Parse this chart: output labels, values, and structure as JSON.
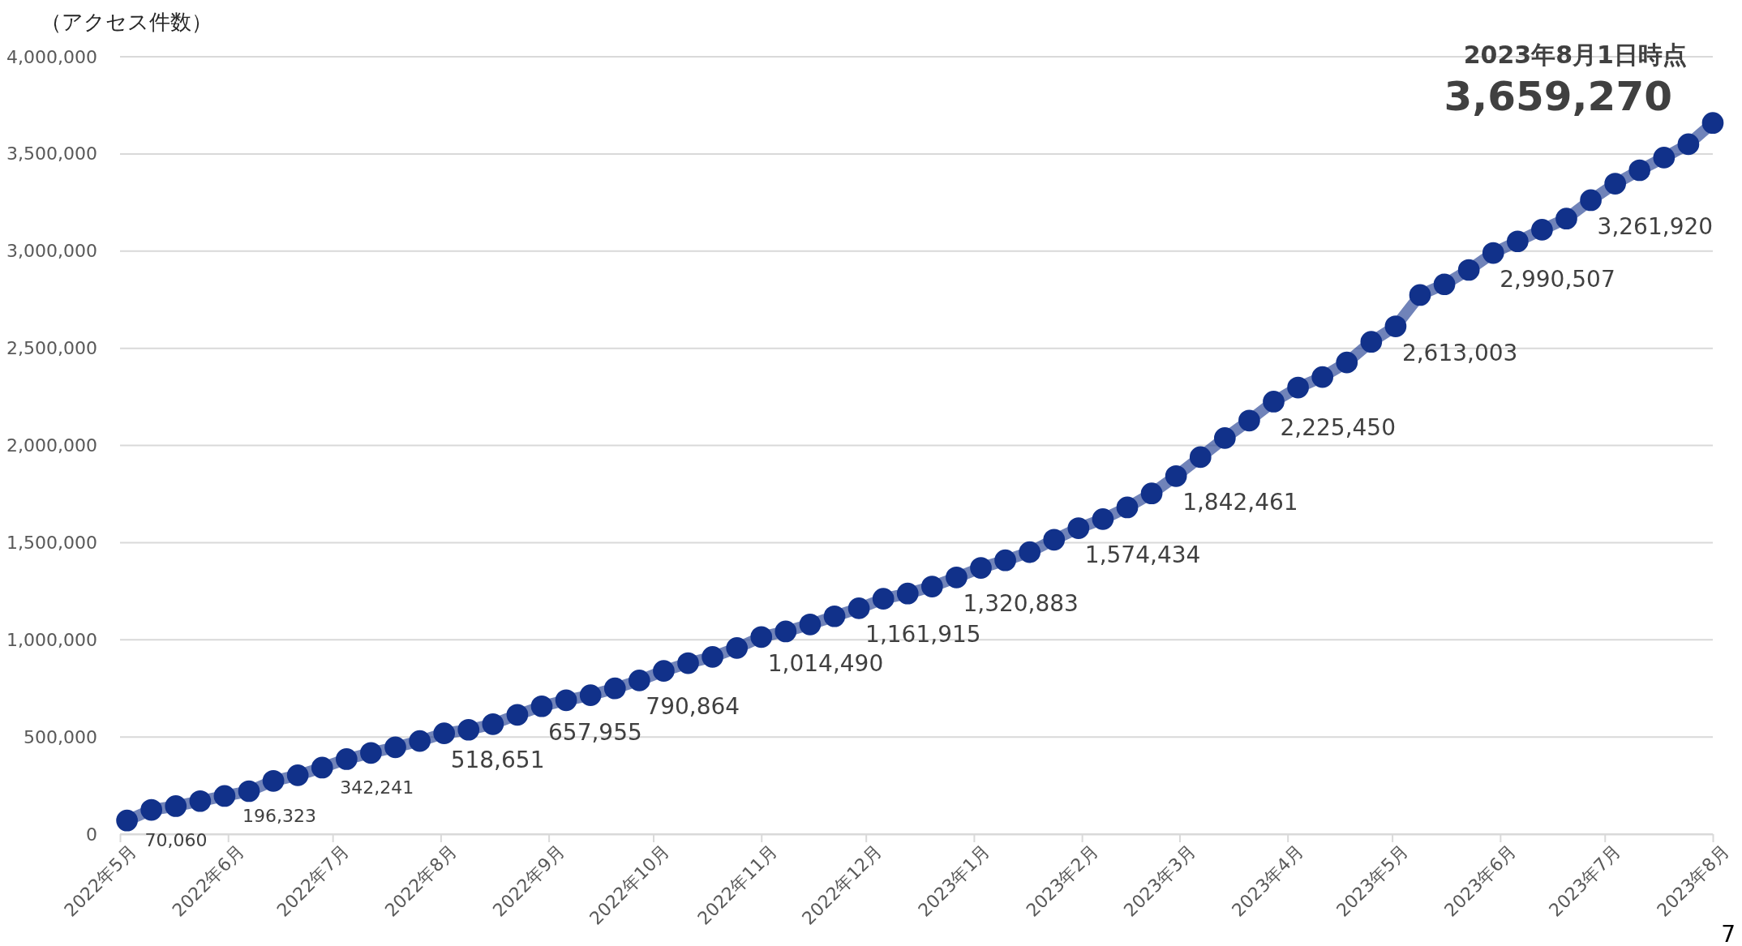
{
  "chart_data": {
    "type": "line",
    "ylabel": "（アクセス件数）",
    "x": [
      "2022-05-03",
      "2022-05-10",
      "2022-05-17",
      "2022-05-24",
      "2022-05-31",
      "2022-06-07",
      "2022-06-14",
      "2022-06-21",
      "2022-06-28",
      "2022-07-05",
      "2022-07-12",
      "2022-07-19",
      "2022-07-26",
      "2022-08-02",
      "2022-08-09",
      "2022-08-16",
      "2022-08-23",
      "2022-08-30",
      "2022-09-06",
      "2022-09-13",
      "2022-09-20",
      "2022-09-27",
      "2022-10-04",
      "2022-10-11",
      "2022-10-18",
      "2022-10-25",
      "2022-11-01",
      "2022-11-08",
      "2022-11-15",
      "2022-11-22",
      "2022-11-29",
      "2022-12-06",
      "2022-12-13",
      "2022-12-20",
      "2022-12-27",
      "2023-01-03",
      "2023-01-10",
      "2023-01-17",
      "2023-01-24",
      "2023-01-31",
      "2023-02-07",
      "2023-02-14",
      "2023-02-21",
      "2023-02-28",
      "2023-03-07",
      "2023-03-14",
      "2023-03-21",
      "2023-03-28",
      "2023-04-04",
      "2023-04-11",
      "2023-04-18",
      "2023-04-25",
      "2023-05-02",
      "2023-05-09",
      "2023-05-16",
      "2023-05-23",
      "2023-05-30",
      "2023-06-06",
      "2023-06-13",
      "2023-06-20",
      "2023-06-27",
      "2023-07-04",
      "2023-07-11",
      "2023-07-18",
      "2023-07-25",
      "2023-08-01"
    ],
    "series": [
      {
        "color": "#11318a",
        "values": [
          70060,
          125000,
          144000,
          170000,
          196323,
          221000,
          274000,
          303000,
          342241,
          386000,
          418000,
          447000,
          479000,
          518651,
          537000,
          566000,
          614000,
          657955,
          689000,
          715000,
          750000,
          790864,
          840000,
          880000,
          912000,
          958000,
          1014490,
          1043000,
          1079000,
          1121000,
          1161915,
          1211000,
          1238000,
          1274000,
          1320883,
          1370000,
          1409000,
          1451000,
          1515000,
          1574434,
          1621000,
          1681000,
          1753000,
          1842461,
          1940000,
          2038000,
          2128000,
          2225450,
          2298000,
          2352000,
          2427000,
          2533000,
          2613003,
          2774000,
          2829000,
          2903000,
          2990507,
          3050000,
          3110000,
          3167000,
          3261920,
          3347000,
          3416000,
          3481000,
          3550000,
          3659270
        ],
        "value_labels": [
          "70,060",
          null,
          null,
          null,
          "196,323",
          null,
          null,
          null,
          "342,241",
          null,
          null,
          null,
          null,
          "518,651",
          null,
          null,
          null,
          "657,955",
          null,
          null,
          null,
          "790,864",
          null,
          null,
          null,
          null,
          "1,014,490",
          null,
          null,
          null,
          "1,161,915",
          null,
          null,
          null,
          "1,320,883",
          null,
          null,
          null,
          null,
          "1,574,434",
          null,
          null,
          null,
          "1,842,461",
          null,
          null,
          null,
          "2,225,450",
          null,
          null,
          null,
          null,
          "2,613,003",
          null,
          null,
          null,
          "2,990,507",
          null,
          null,
          null,
          "3,261,920",
          null,
          null,
          null,
          null,
          "3,659,270"
        ]
      }
    ],
    "xlim": [
      "2022-05-01",
      "2023-08-01"
    ],
    "xticks": [
      {
        "value": "2022-05-01",
        "label": "2022年5月"
      },
      {
        "value": "2022-06-01",
        "label": "2022年6月"
      },
      {
        "value": "2022-07-01",
        "label": "2022年7月"
      },
      {
        "value": "2022-08-01",
        "label": "2022年8月"
      },
      {
        "value": "2022-09-01",
        "label": "2022年9月"
      },
      {
        "value": "2022-10-01",
        "label": "2022年10月"
      },
      {
        "value": "2022-11-01",
        "label": "2022年11月"
      },
      {
        "value": "2022-12-01",
        "label": "2022年12月"
      },
      {
        "value": "2023-01-01",
        "label": "2023年1月"
      },
      {
        "value": "2023-02-01",
        "label": "2023年2月"
      },
      {
        "value": "2023-03-01",
        "label": "2023年3月"
      },
      {
        "value": "2023-04-01",
        "label": "2023年4月"
      },
      {
        "value": "2023-05-01",
        "label": "2023年5月"
      },
      {
        "value": "2023-06-01",
        "label": "2023年6月"
      },
      {
        "value": "2023-07-01",
        "label": "2023年7月"
      },
      {
        "value": "2023-08-01",
        "label": "2023年8月"
      }
    ],
    "ylim": [
      0,
      4000000
    ],
    "yticks": [
      {
        "value": 0,
        "label": "0"
      },
      {
        "value": 500000,
        "label": "500,000"
      },
      {
        "value": 1000000,
        "label": "1,000,000"
      },
      {
        "value": 1500000,
        "label": "1,500,000"
      },
      {
        "value": 2000000,
        "label": "2,000,000"
      },
      {
        "value": 2500000,
        "label": "2,500,000"
      },
      {
        "value": 3000000,
        "label": "3,000,000"
      },
      {
        "value": 3500000,
        "label": "3,500,000"
      },
      {
        "value": 4000000,
        "label": "4,000,000"
      }
    ],
    "grid": "y",
    "marker": "circle",
    "line_style": "solid",
    "annotations": [
      "2023年8月1日時点",
      "7"
    ]
  }
}
